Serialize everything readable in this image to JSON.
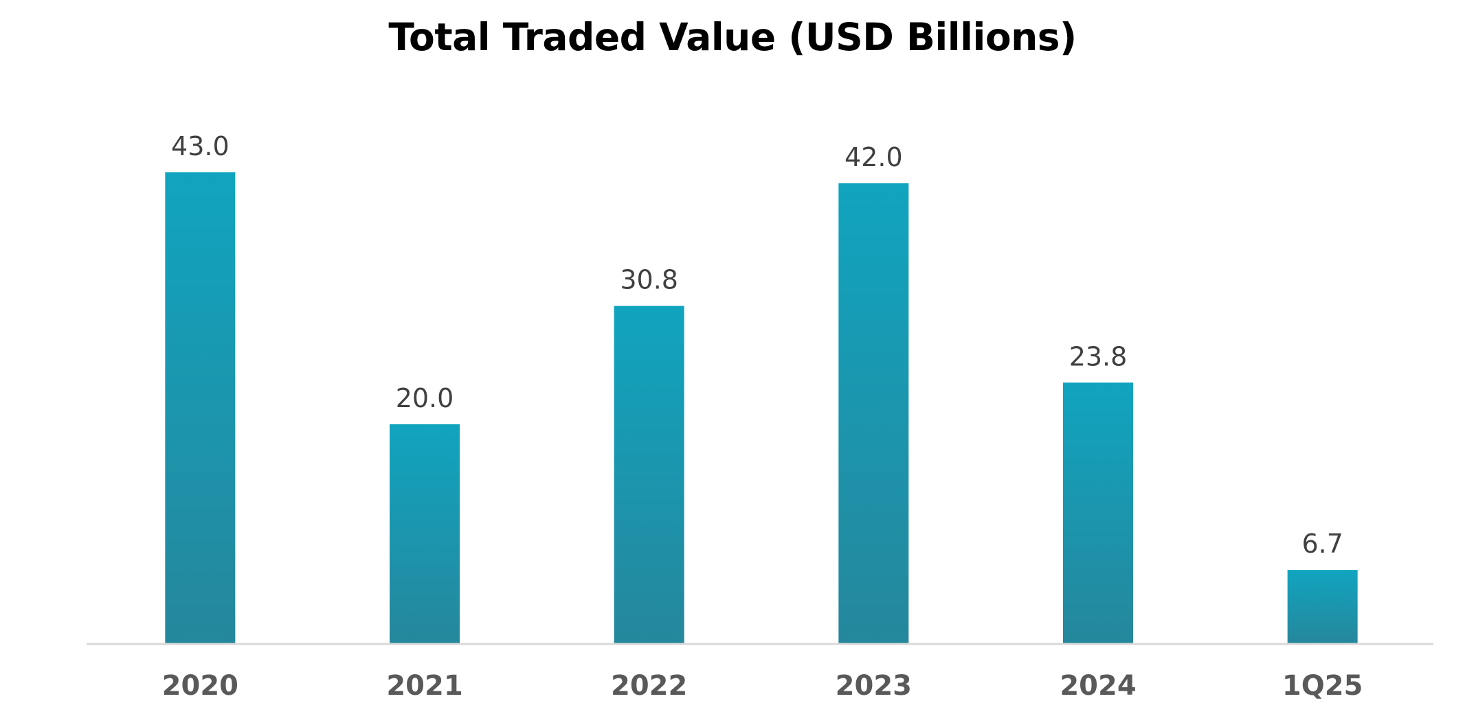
{
  "chart_data": {
    "type": "bar",
    "title": "Total Traded Value (USD Billions)",
    "xlabel": "",
    "ylabel": "",
    "categories": [
      "2020",
      "2021",
      "2022",
      "2023",
      "2024",
      "1Q25"
    ],
    "values": [
      43.0,
      20.0,
      30.8,
      42.0,
      23.8,
      6.7
    ],
    "value_labels": [
      "43.0",
      "20.0",
      "30.8",
      "42.0",
      "23.8",
      "6.7"
    ],
    "ylim": [
      0,
      43
    ],
    "grid": false,
    "legend": "none",
    "colors": {
      "bar_top": "#11a4bf",
      "bar_bottom": "#25879c",
      "axis": "#d9d9d9",
      "data_label": "#404040",
      "tick_label": "#595959"
    }
  }
}
